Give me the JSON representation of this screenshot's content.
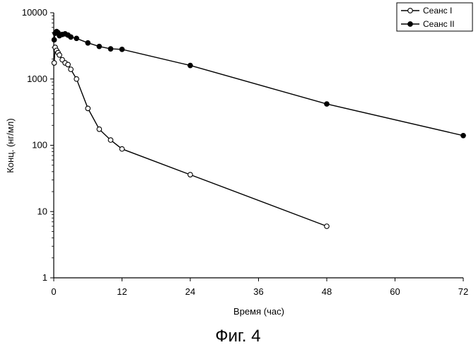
{
  "chart_data": {
    "type": "scatter",
    "subtype": "line-with-markers",
    "xlabel": "Время (час)",
    "ylabel": "Конц. (нг/мл)",
    "x_ticks": [
      0,
      12,
      24,
      36,
      48,
      60,
      72
    ],
    "y_ticks": [
      1,
      10,
      100,
      1000,
      10000
    ],
    "y_scale": "log",
    "xlim": [
      0,
      72
    ],
    "ylim": [
      1,
      10000
    ],
    "grid": false,
    "legend_position": "top-right",
    "series": [
      {
        "name": "Сеанс I",
        "marker": "open-circle",
        "x": [
          0.08,
          0.25,
          0.5,
          0.75,
          1,
          1.5,
          2,
          2.5,
          3,
          4,
          6,
          8,
          10,
          12,
          24,
          48
        ],
        "y": [
          1750,
          3000,
          2700,
          2500,
          2300,
          1950,
          1750,
          1650,
          1400,
          1000,
          360,
          175,
          120,
          88,
          36,
          6
        ]
      },
      {
        "name": "Сеанс II",
        "marker": "filled-circle",
        "x": [
          0.08,
          0.25,
          0.5,
          0.75,
          1,
          1.5,
          2,
          2.5,
          3,
          4,
          6,
          8,
          10,
          12,
          24,
          48,
          72
        ],
        "y": [
          3900,
          4900,
          5200,
          5000,
          4500,
          4700,
          4800,
          4600,
          4300,
          4100,
          3500,
          3100,
          2850,
          2800,
          1600,
          420,
          140
        ]
      }
    ]
  },
  "caption": "Фиг. 4",
  "colors": {
    "line": "#000000",
    "background": "#ffffff"
  }
}
